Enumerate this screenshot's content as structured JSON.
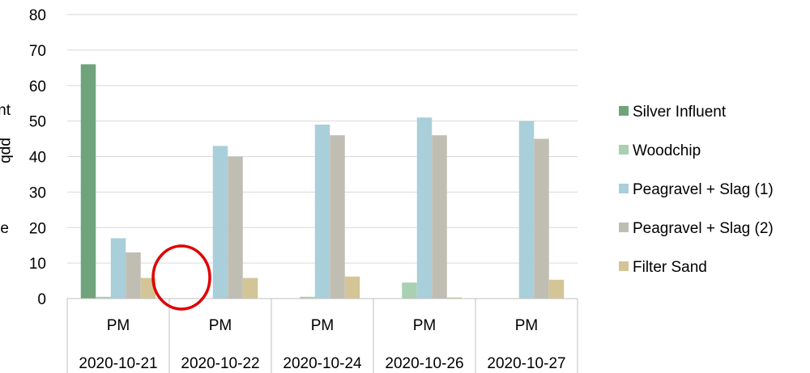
{
  "chart_data": {
    "type": "bar",
    "title": "",
    "ylabel_lines": [
      "nt",
      "ppb",
      "e"
    ],
    "xlabel": "",
    "ylim": [
      0,
      80
    ],
    "yticks": [
      0,
      10,
      20,
      30,
      40,
      50,
      60,
      70,
      80
    ],
    "grid": true,
    "legend_position": "right",
    "category_time": [
      "PM",
      "PM",
      "PM",
      "PM",
      "PM"
    ],
    "categories": [
      "2020-10-21",
      "2020-10-22",
      "2020-10-24",
      "2020-10-26",
      "2020-10-27"
    ],
    "series": [
      {
        "name": "Silver Influent",
        "color": "#6fa37b",
        "values": [
          66,
          0,
          0,
          0,
          0
        ]
      },
      {
        "name": "Woodchip",
        "color": "#a9d0b0",
        "values": [
          0.5,
          0,
          0.5,
          4.5,
          0
        ]
      },
      {
        "name": "Peagravel + Slag (1)",
        "color": "#a9cfda",
        "values": [
          17,
          43,
          49,
          51,
          50
        ]
      },
      {
        "name": "Peagravel + Slag (2)",
        "color": "#c0beb2",
        "values": [
          13,
          40,
          46,
          46,
          45
        ]
      },
      {
        "name": "Filter Sand",
        "color": "#d3c595",
        "values": [
          5.8,
          5.8,
          6.2,
          0.3,
          5.3
        ]
      }
    ],
    "annotation": {
      "shape": "circle",
      "color": "#e00000",
      "category_index": 1
    }
  }
}
